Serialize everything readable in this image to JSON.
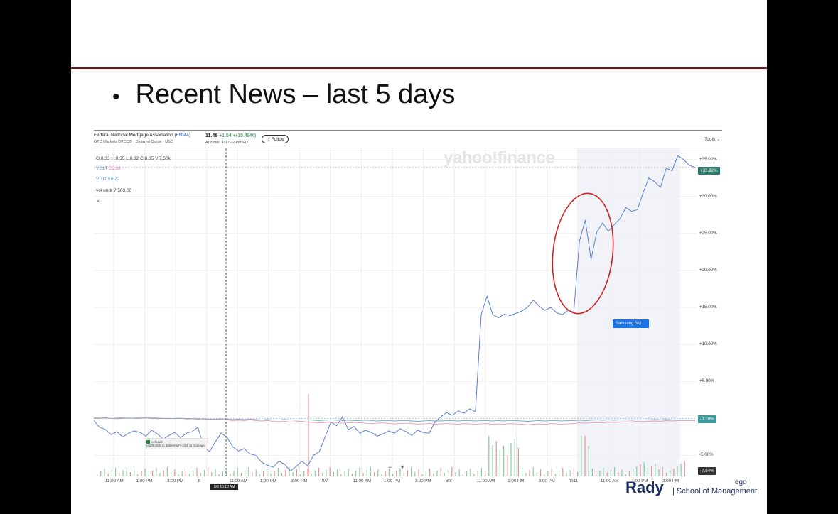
{
  "slide": {
    "bullet_text": "Recent News – last 5 days"
  },
  "quote": {
    "company_name": "Federal National Mortgage Association (",
    "ticker": "FNMA",
    "company_close": ")",
    "exchange_line": "OTC Markets OTCQB · Delayed Quote · USD",
    "price": "11.48",
    "change": "+1.54  +(15.49%)",
    "at_close": "At close: 4:00:22 PM EDT",
    "follow_label": "Follow",
    "tools_label": "Tools"
  },
  "legend": {
    "ohlc": "O:8.33  H:8.35  L:8.32  C:8.35  V:7.50k",
    "vglt_label": "VGLT",
    "vglt_value": "55.98",
    "vgit_label": "VGIT",
    "vgit_value": "59.72",
    "vol_label": "vol undr",
    "vol_value": "7,503.00",
    "caret": "^"
  },
  "watermark": "yahoo!finance",
  "chart_data": {
    "type": "line",
    "y_ticks": [
      "+35.00%",
      "+30.00%",
      "+25.00%",
      "+20.00%",
      "+15.00%",
      "+10.00%",
      "+5.00%",
      "-5.00%"
    ],
    "x_ticks": [
      "11:00 AM",
      "1:00 PM",
      "3:00 PM",
      "8",
      "11:00 AM",
      "1:00 PM",
      "3:00 PM",
      "8/7",
      "11:00 AM",
      "1:00 PM",
      "3:00 PM",
      "8/8",
      "11:00 AM",
      "1:00 PM",
      "3:00 PM",
      "8/11",
      "11:00 AM",
      "1:00 PM",
      "3:00 PM"
    ],
    "crosshair_time": "8/6 10:10 AM",
    "badges": [
      "+33.92%",
      "-0.30%",
      "-7.84%"
    ],
    "series": [
      {
        "name": "FNMA",
        "color": "#5b7fd4",
        "values": [
          -0.3,
          -1.2,
          -1.5,
          -2.2,
          -1.8,
          -2.5,
          -2.0,
          -1.7,
          -1.9,
          -2.4,
          -1.6,
          -2.1,
          -2.8,
          -2.3,
          -1.9,
          -2.6,
          -2.0,
          -1.8,
          -1.2,
          -3.8,
          -4.5,
          -3.2,
          -2.0,
          -2.5,
          -3.8,
          -4.4,
          -4.1,
          -4.8,
          -5.0,
          -5.9,
          -6.3,
          -6.6,
          -5.8,
          -6.2,
          -7.1,
          -6.5,
          -5.8,
          -6.4,
          -5.0,
          -4.5,
          -2.5,
          -0.5,
          -1.0,
          0.2,
          -1.5,
          -1.1,
          -2.0,
          -1.6,
          -1.9,
          -2.4,
          -2.1,
          -1.7,
          -2.0,
          -1.4,
          -1.8,
          -2.3,
          -1.6,
          -1.9,
          -2.0,
          -0.5,
          0.2,
          0.8,
          0.4,
          1.0,
          0.7,
          1.3,
          0.9,
          14.0,
          16.5,
          14.0,
          13.6,
          14.1,
          13.9,
          14.2,
          14.5,
          15.0,
          16.0,
          15.2,
          14.6,
          15.0,
          14.3,
          14.0,
          14.6,
          14.4,
          24.0,
          26.8,
          21.5,
          25.2,
          26.4,
          25.3,
          26.2,
          27.0,
          28.5,
          28.0,
          28.2,
          30.5,
          32.5,
          32.0,
          31.2,
          33.8,
          33.5,
          35.5,
          35.0,
          34.2,
          33.92
        ]
      },
      {
        "name": "VGLT",
        "color": "#e39bb8",
        "values": [
          0.1,
          0.05,
          0.1,
          0.0,
          0.05,
          0.1,
          0.0,
          0.05,
          0.1,
          0.15,
          0.1,
          0.05,
          0.0,
          -0.05,
          0.0,
          0.05,
          -0.1,
          -0.05,
          0.0,
          -0.1,
          -0.2,
          -0.15,
          -0.1,
          -0.2,
          -0.3,
          -0.25,
          -0.3,
          -0.2,
          -0.3,
          -0.35,
          -0.3,
          -0.4,
          -0.45,
          -0.4,
          -0.5,
          -0.45,
          -0.4,
          -0.5,
          -0.55,
          -0.6,
          -0.55,
          -0.5,
          -0.6,
          -0.65,
          -0.6,
          -0.55,
          -0.6,
          -0.65,
          -0.7,
          -0.65,
          -0.6,
          -0.7,
          -0.75,
          -0.7,
          -0.65,
          -0.7,
          -0.8,
          -0.75,
          -0.7,
          -0.8,
          -0.75,
          -0.7,
          -0.75,
          -0.8,
          -0.7,
          -0.75,
          -0.8,
          -0.75,
          -0.7,
          -0.8,
          -0.75,
          -0.8,
          -0.7,
          -0.75,
          -0.8,
          -0.85,
          -0.8,
          -0.75,
          -0.8,
          -0.7,
          -0.75,
          -0.8,
          -0.75,
          -0.7,
          -0.6,
          -0.65,
          -0.6,
          -0.55,
          -0.6,
          -0.5,
          -0.55,
          -0.5,
          -0.45,
          -0.5,
          -0.4,
          -0.45,
          -0.4,
          -0.35,
          -0.4,
          -0.3,
          -0.35,
          -0.3,
          -0.3,
          -0.3,
          -0.3
        ]
      },
      {
        "name": "VGIT",
        "color": "#7aa7c8",
        "values": [
          0.0,
          0.0,
          0.05,
          0.0,
          -0.05,
          0.0,
          0.05,
          0.0,
          0.0,
          0.05,
          0.0,
          -0.05,
          0.0,
          0.0,
          -0.05,
          0.0,
          0.0,
          -0.05,
          -0.1,
          -0.05,
          -0.1,
          -0.1,
          -0.05,
          -0.1,
          -0.15,
          -0.1,
          -0.15,
          -0.1,
          -0.15,
          -0.2,
          -0.15,
          -0.2,
          -0.2,
          -0.15,
          -0.2,
          -0.25,
          -0.2,
          -0.2,
          -0.25,
          -0.3,
          -0.25,
          -0.2,
          -0.25,
          -0.3,
          -0.25,
          -0.3,
          -0.3,
          -0.25,
          -0.3,
          -0.35,
          -0.3,
          -0.3,
          -0.35,
          -0.3,
          -0.3,
          -0.35,
          -0.4,
          -0.35,
          -0.3,
          -0.35,
          -0.35,
          -0.3,
          -0.3,
          -0.35,
          -0.3,
          -0.3,
          -0.35,
          -0.3,
          -0.3,
          -0.35,
          -0.3,
          -0.35,
          -0.3,
          -0.3,
          -0.35,
          -0.4,
          -0.35,
          -0.3,
          -0.35,
          -0.3,
          -0.3,
          -0.35,
          -0.3,
          -0.3,
          -0.25,
          -0.3,
          -0.25,
          -0.2,
          -0.25,
          -0.2,
          -0.25,
          -0.2,
          -0.2,
          -0.25,
          -0.2,
          -0.2,
          -0.2,
          -0.15,
          -0.2,
          -0.15,
          -0.2,
          -0.2,
          -0.2,
          -0.2,
          -0.2
        ]
      }
    ],
    "annotation_label": "Samsung SM ...",
    "ylim": [
      -7.84,
      36.5
    ]
  },
  "volume_tooltip": {
    "title": "vol undr",
    "hint": "(right-click to delete/right-click to manage)"
  },
  "zoom_controls": "−  +",
  "logo": {
    "main": "Rady",
    "divider": "|",
    "school": "School of Management",
    "tag": "ego"
  }
}
